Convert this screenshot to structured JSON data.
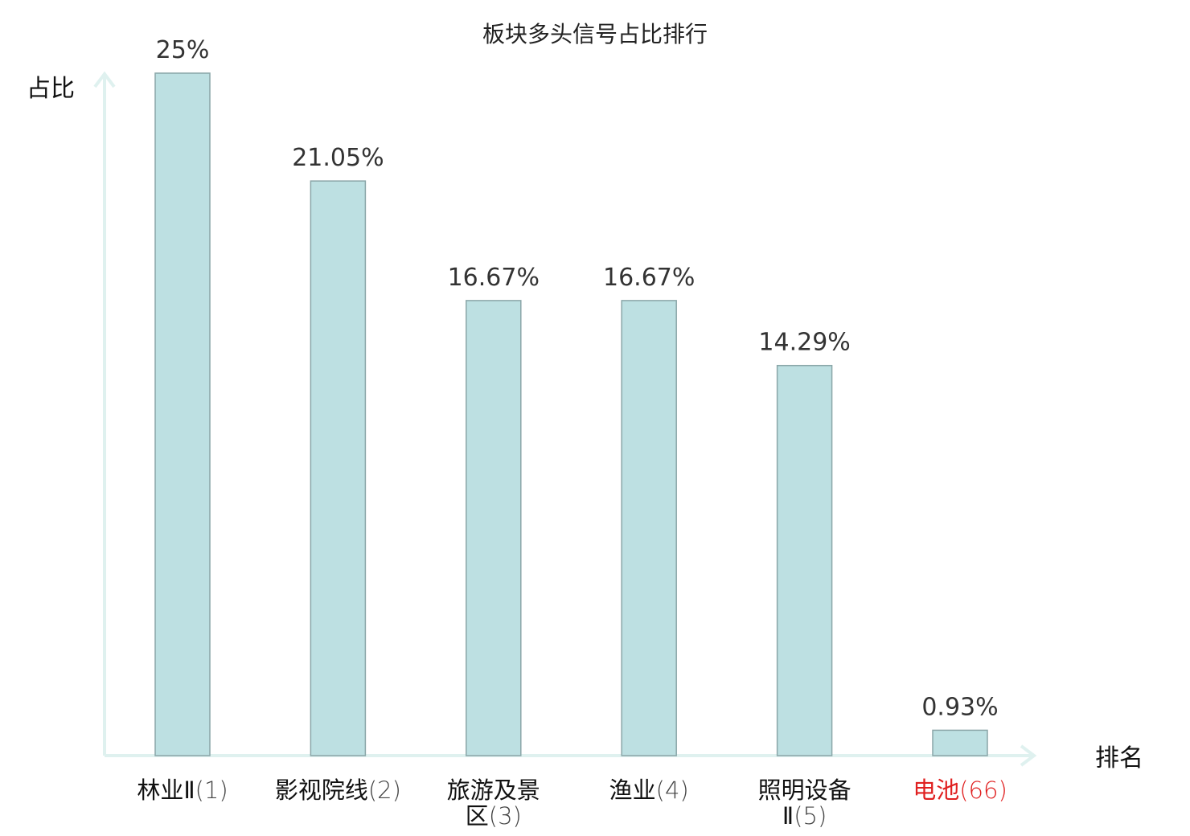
{
  "chart_data": {
    "type": "bar",
    "title": "板块多头信号占比排行",
    "ylabel": "占比",
    "xlabel": "排名",
    "ylim": [
      0,
      25
    ],
    "categories": [
      {
        "name_lines": [
          "林业Ⅱ"
        ],
        "rank": "(1)",
        "value": 25,
        "label": "25%",
        "highlight": false
      },
      {
        "name_lines": [
          "影视院线"
        ],
        "rank": "(2)",
        "value": 21.05,
        "label": "21.05%",
        "highlight": false
      },
      {
        "name_lines": [
          "旅游及景",
          "区"
        ],
        "rank": "(3)",
        "value": 16.67,
        "label": "16.67%",
        "highlight": false
      },
      {
        "name_lines": [
          "渔业"
        ],
        "rank": "(4)",
        "value": 16.67,
        "label": "16.67%",
        "highlight": false
      },
      {
        "name_lines": [
          "照明设备",
          "Ⅱ"
        ],
        "rank": "(5)",
        "value": 14.29,
        "label": "14.29%",
        "highlight": false
      },
      {
        "name_lines": [
          "电池"
        ],
        "rank": "(66)",
        "value": 0.93,
        "label": "0.93%",
        "highlight": true
      }
    ],
    "colors": {
      "bar_fill": "#bde0e2",
      "bar_stroke": "#8aa6a8",
      "axis": "#dff1ef",
      "highlight": "#e02020"
    }
  }
}
